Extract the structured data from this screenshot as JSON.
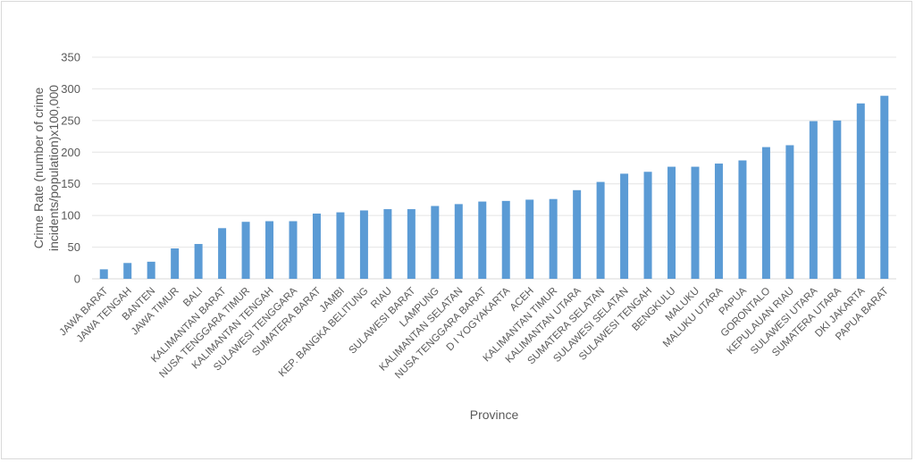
{
  "chart_data": {
    "type": "bar",
    "title": "",
    "xlabel": "Province",
    "ylabel_lines": [
      "Crime Rate (number of crime",
      "incidents/population)x100,000"
    ],
    "ylim": [
      0,
      350
    ],
    "yticks": [
      "0",
      "50",
      "100",
      "150",
      "200",
      "250",
      "300",
      "350"
    ],
    "grid": true,
    "bar_color": "#5b9bd5",
    "categories": [
      "JAWA BARAT",
      "JAWA TENGAH",
      "BANTEN",
      "JAWA TIMUR",
      "BALI",
      "KALIMANTAN BARAT",
      "NUSA TENGGARA TIMUR",
      "KALIMANTAN TENGAH",
      "SULAWESI TENGGARA",
      "SUMATERA BARAT",
      "JAMBI",
      "KEP. BANGKA BELITUNG",
      "RIAU",
      "SULAWESI BARAT",
      "LAMPUNG",
      "KALIMANTAN SELATAN",
      "NUSA TENGGARA BARAT",
      "D I YOGYAKARTA",
      "ACEH",
      "KALIMANTAN TIMUR",
      "KALIMANTAN UTARA",
      "SUMATERA SELATAN",
      "SULAWESI SELATAN",
      "SULAWESI TENGAH",
      "BENGKULU",
      "MALUKU",
      "MALUKU UTARA",
      "PAPUA",
      "GORONTALO",
      "KEPULAUAN RIAU",
      "SULAWESI UTARA",
      "SUMATERA UTARA",
      "DKI JAKARTA",
      "PAPUA BARAT"
    ],
    "values": [
      15,
      25,
      27,
      48,
      55,
      80,
      90,
      91,
      91,
      103,
      105,
      108,
      110,
      110,
      115,
      118,
      122,
      123,
      125,
      126,
      140,
      153,
      166,
      169,
      177,
      177,
      182,
      187,
      208,
      211,
      249,
      250,
      277,
      289
    ]
  }
}
